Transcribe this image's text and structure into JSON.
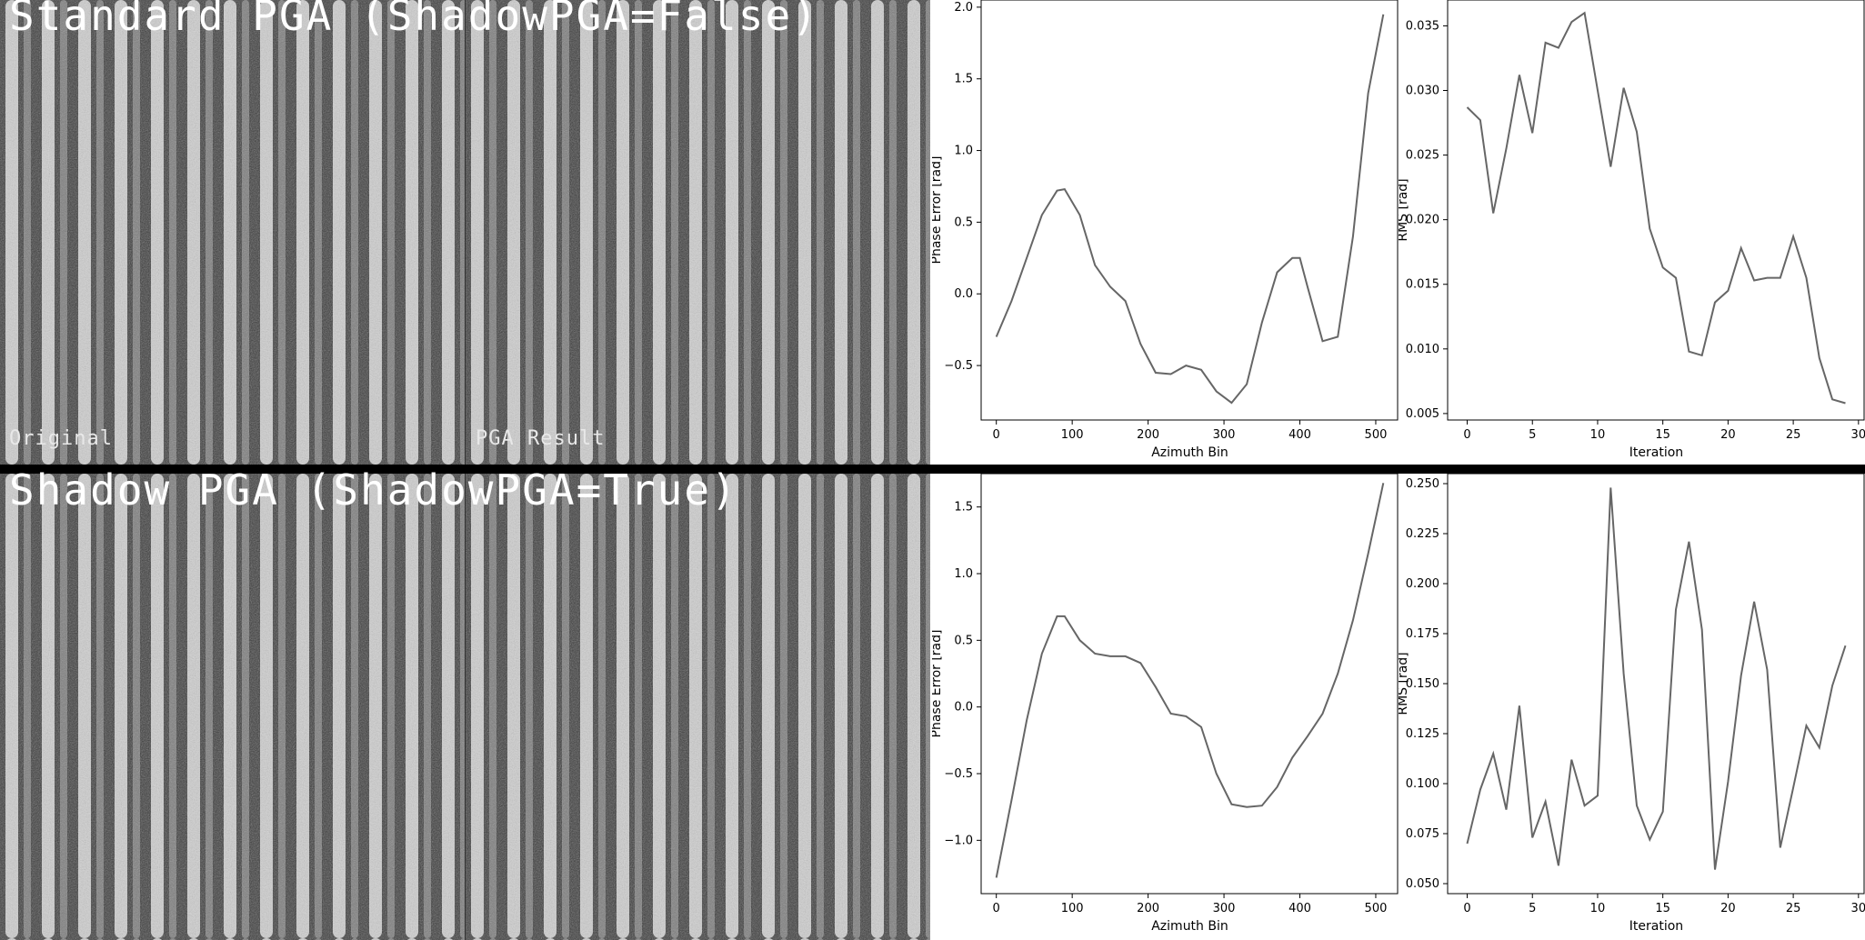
{
  "sections": [
    {
      "title": "Standard PGA (ShadowPGA=False)",
      "left_label": "Original",
      "right_label": "PGA Result"
    },
    {
      "title": "Shadow PGA (ShadowPGA=True)",
      "left_label": "",
      "right_label": ""
    }
  ],
  "chart_data": [
    {
      "type": "line",
      "xlabel": "Azimuth Bin",
      "ylabel": "Phase Error [rad]",
      "xlim": [
        -20,
        530
      ],
      "ylim": [
        -0.88,
        2.05
      ],
      "xticks": [
        0,
        100,
        200,
        300,
        400,
        500
      ],
      "yticks": [
        -0.5,
        0.0,
        0.5,
        1.0,
        1.5,
        2.0
      ],
      "ytick_labels": [
        "−0.5",
        "0.0",
        "0.5",
        "1.0",
        "1.5",
        "2.0"
      ],
      "series": [
        {
          "x": [
            0,
            20,
            40,
            60,
            80,
            90,
            110,
            130,
            150,
            170,
            190,
            210,
            230,
            250,
            270,
            290,
            310,
            330,
            350,
            370,
            390,
            400,
            410,
            430,
            450,
            470,
            490,
            510
          ],
          "y": [
            -0.3,
            -0.05,
            0.25,
            0.55,
            0.72,
            0.73,
            0.55,
            0.2,
            0.05,
            -0.05,
            -0.35,
            -0.55,
            -0.56,
            -0.5,
            -0.53,
            -0.68,
            -0.76,
            -0.63,
            -0.2,
            0.15,
            0.25,
            0.25,
            0.05,
            -0.33,
            -0.3,
            0.4,
            1.4,
            1.95
          ]
        }
      ]
    },
    {
      "type": "line",
      "xlabel": "Iteration",
      "ylabel": "RMS [rad]",
      "xlim": [
        -1.5,
        30.5
      ],
      "ylim": [
        0.0045,
        0.037
      ],
      "xticks": [
        0,
        5,
        10,
        15,
        20,
        25,
        30
      ],
      "yticks": [
        0.005,
        0.01,
        0.015,
        0.02,
        0.025,
        0.03,
        0.035
      ],
      "ytick_labels": [
        "0.005",
        "0.010",
        "0.015",
        "0.020",
        "0.025",
        "0.030",
        "0.035"
      ],
      "series": [
        {
          "x": [
            0,
            1,
            2,
            3,
            4,
            5,
            6,
            7,
            8,
            9,
            10,
            11,
            12,
            13,
            14,
            15,
            16,
            17,
            18,
            19,
            20,
            21,
            22,
            23,
            24,
            25,
            26,
            27,
            28,
            29
          ],
          "y": [
            0.0287,
            0.0277,
            0.0205,
            0.0255,
            0.0312,
            0.0267,
            0.0337,
            0.0333,
            0.0353,
            0.036,
            0.03,
            0.0241,
            0.0302,
            0.0268,
            0.0193,
            0.0163,
            0.0155,
            0.0098,
            0.0095,
            0.0136,
            0.0145,
            0.0178,
            0.0153,
            0.0155,
            0.0155,
            0.0187,
            0.0155,
            0.0093,
            0.0061,
            0.0058
          ]
        }
      ]
    },
    {
      "type": "line",
      "xlabel": "Azimuth Bin",
      "ylabel": "Phase Error [rad]",
      "xlim": [
        -20,
        530
      ],
      "ylim": [
        -1.4,
        1.75
      ],
      "xticks": [
        0,
        100,
        200,
        300,
        400,
        500
      ],
      "yticks": [
        -1.0,
        -0.5,
        0.0,
        0.5,
        1.0,
        1.5
      ],
      "ytick_labels": [
        "−1.0",
        "−0.5",
        "0.0",
        "0.5",
        "1.0",
        "1.5"
      ],
      "series": [
        {
          "x": [
            0,
            20,
            40,
            60,
            80,
            90,
            110,
            130,
            150,
            170,
            190,
            210,
            230,
            250,
            270,
            290,
            310,
            330,
            350,
            370,
            390,
            410,
            430,
            450,
            470,
            490,
            510
          ],
          "y": [
            -1.28,
            -0.7,
            -0.1,
            0.4,
            0.68,
            0.68,
            0.5,
            0.4,
            0.38,
            0.38,
            0.33,
            0.15,
            -0.05,
            -0.07,
            -0.15,
            -0.5,
            -0.73,
            -0.75,
            -0.74,
            -0.6,
            -0.38,
            -0.22,
            -0.05,
            0.25,
            0.65,
            1.15,
            1.68
          ]
        }
      ]
    },
    {
      "type": "line",
      "xlabel": "Iteration",
      "ylabel": "RMS [rad]",
      "xlim": [
        -1.5,
        30.5
      ],
      "ylim": [
        0.045,
        0.255
      ],
      "xticks": [
        0,
        5,
        10,
        15,
        20,
        25,
        30
      ],
      "yticks": [
        0.05,
        0.075,
        0.1,
        0.125,
        0.15,
        0.175,
        0.2,
        0.225,
        0.25
      ],
      "ytick_labels": [
        "0.050",
        "0.075",
        "0.100",
        "0.125",
        "0.150",
        "0.175",
        "0.200",
        "0.225",
        "0.250"
      ],
      "series": [
        {
          "x": [
            0,
            1,
            2,
            3,
            4,
            5,
            6,
            7,
            8,
            9,
            10,
            11,
            12,
            13,
            14,
            15,
            16,
            17,
            18,
            19,
            20,
            21,
            22,
            23,
            24,
            25,
            26,
            27,
            28,
            29
          ],
          "y": [
            0.07,
            0.097,
            0.115,
            0.087,
            0.139,
            0.073,
            0.091,
            0.059,
            0.112,
            0.089,
            0.094,
            0.248,
            0.155,
            0.089,
            0.072,
            0.086,
            0.187,
            0.221,
            0.177,
            0.057,
            0.101,
            0.154,
            0.191,
            0.157,
            0.068,
            0.098,
            0.129,
            0.118,
            0.149,
            0.169
          ]
        }
      ]
    }
  ],
  "colors": {
    "line": "#666666",
    "axis": "#000000",
    "background": "#ffffff",
    "divider": "#000000"
  }
}
